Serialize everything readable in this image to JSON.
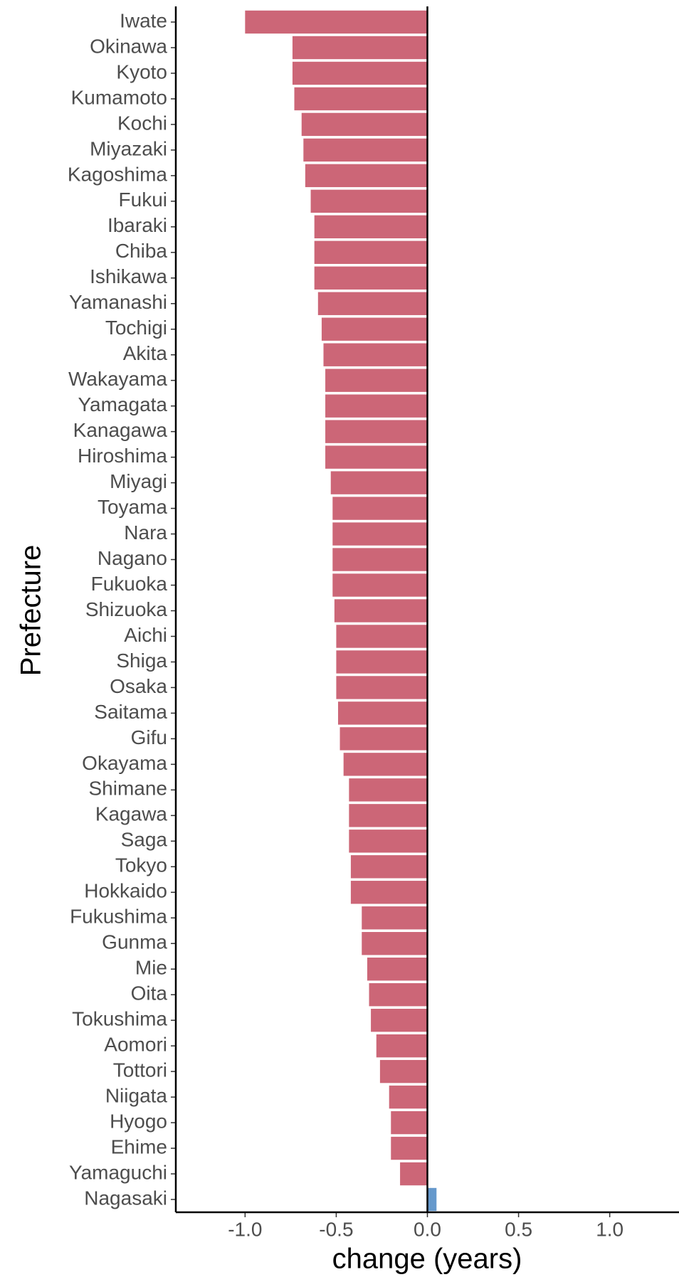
{
  "chart_data": {
    "type": "barh",
    "x_label": "change (years)",
    "y_label": "Prefecture",
    "categories": [
      "Iwate",
      "Okinawa",
      "Kyoto",
      "Kumamoto",
      "Kochi",
      "Miyazaki",
      "Kagoshima",
      "Fukui",
      "Ibaraki",
      "Chiba",
      "Ishikawa",
      "Yamanashi",
      "Tochigi",
      "Akita",
      "Wakayama",
      "Yamagata",
      "Kanagawa",
      "Hiroshima",
      "Miyagi",
      "Toyama",
      "Nara",
      "Nagano",
      "Fukuoka",
      "Shizuoka",
      "Aichi",
      "Shiga",
      "Osaka",
      "Saitama",
      "Gifu",
      "Okayama",
      "Shimane",
      "Kagawa",
      "Saga",
      "Tokyo",
      "Hokkaido",
      "Fukushima",
      "Gunma",
      "Mie",
      "Oita",
      "Tokushima",
      "Aomori",
      "Tottori",
      "Niigata",
      "Hyogo",
      "Ehime",
      "Yamaguchi",
      "Nagasaki"
    ],
    "values": [
      -1.0,
      -0.74,
      -0.74,
      -0.73,
      -0.69,
      -0.68,
      -0.67,
      -0.64,
      -0.62,
      -0.62,
      -0.62,
      -0.6,
      -0.58,
      -0.57,
      -0.56,
      -0.56,
      -0.56,
      -0.56,
      -0.53,
      -0.52,
      -0.52,
      -0.52,
      -0.52,
      -0.51,
      -0.5,
      -0.5,
      -0.5,
      -0.49,
      -0.48,
      -0.46,
      -0.43,
      -0.43,
      -0.43,
      -0.42,
      -0.42,
      -0.36,
      -0.36,
      -0.33,
      -0.32,
      -0.31,
      -0.28,
      -0.26,
      -0.21,
      -0.2,
      -0.2,
      -0.15,
      0.05
    ],
    "colors": [
      "#cc6677",
      "#cc6677",
      "#cc6677",
      "#cc6677",
      "#cc6677",
      "#cc6677",
      "#cc6677",
      "#cc6677",
      "#cc6677",
      "#cc6677",
      "#cc6677",
      "#cc6677",
      "#cc6677",
      "#cc6677",
      "#cc6677",
      "#cc6677",
      "#cc6677",
      "#cc6677",
      "#cc6677",
      "#cc6677",
      "#cc6677",
      "#cc6677",
      "#cc6677",
      "#cc6677",
      "#cc6677",
      "#cc6677",
      "#cc6677",
      "#cc6677",
      "#cc6677",
      "#cc6677",
      "#cc6677",
      "#cc6677",
      "#cc6677",
      "#cc6677",
      "#cc6677",
      "#cc6677",
      "#cc6677",
      "#cc6677",
      "#cc6677",
      "#cc6677",
      "#cc6677",
      "#cc6677",
      "#cc6677",
      "#cc6677",
      "#cc6677",
      "#cc6677",
      "#6699cc"
    ],
    "xlim": [
      -1.38,
      1.38
    ],
    "xticks": [
      {
        "value": -1,
        "label": "-1.0"
      },
      {
        "value": -0.5,
        "label": "-0.5"
      },
      {
        "value": 0,
        "label": "0.0"
      },
      {
        "value": 0.5,
        "label": "0.5"
      },
      {
        "value": 1,
        "label": "1.0"
      }
    ]
  }
}
